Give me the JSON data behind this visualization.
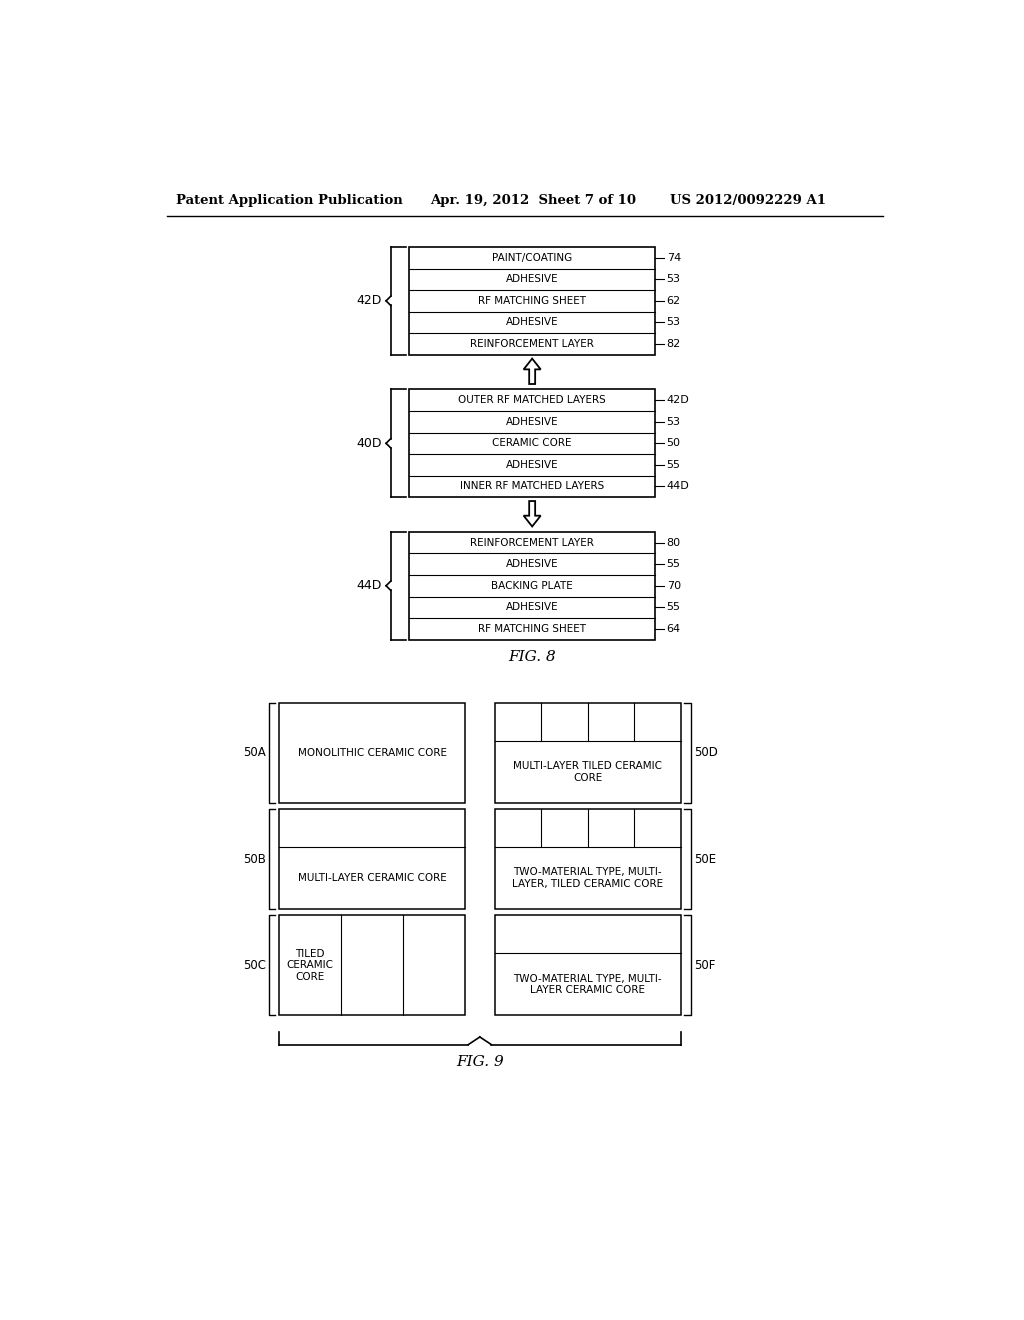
{
  "header_left": "Patent Application Publication",
  "header_mid": "Apr. 19, 2012  Sheet 7 of 10",
  "header_right": "US 2012/0092229 A1",
  "fig8": {
    "caption": "FIG. 8",
    "box1": {
      "label": "42D",
      "layers": [
        {
          "text": "PAINT/COATING",
          "ref": "74"
        },
        {
          "text": "ADHESIVE",
          "ref": "53"
        },
        {
          "text": "RF MATCHING SHEET",
          "ref": "62"
        },
        {
          "text": "ADHESIVE",
          "ref": "53"
        },
        {
          "text": "REINFORCEMENT LAYER",
          "ref": "82"
        }
      ]
    },
    "box2": {
      "label": "40D",
      "layers": [
        {
          "text": "OUTER RF MATCHED LAYERS",
          "ref": "42D"
        },
        {
          "text": "ADHESIVE",
          "ref": "53"
        },
        {
          "text": "CERAMIC CORE",
          "ref": "50"
        },
        {
          "text": "ADHESIVE",
          "ref": "55"
        },
        {
          "text": "INNER RF MATCHED LAYERS",
          "ref": "44D"
        }
      ]
    },
    "box3": {
      "label": "44D",
      "layers": [
        {
          "text": "REINFORCEMENT LAYER",
          "ref": "80"
        },
        {
          "text": "ADHESIVE",
          "ref": "55"
        },
        {
          "text": "BACKING PLATE",
          "ref": "70"
        },
        {
          "text": "ADHESIVE",
          "ref": "55"
        },
        {
          "text": "RF MATCHING SHEET",
          "ref": "64"
        }
      ]
    }
  },
  "fig9": {
    "caption": "FIG. 9",
    "cells": [
      {
        "row": 0,
        "col": 0,
        "label": "50A",
        "text": "MONOLITHIC CERAMIC CORE",
        "sublayers": 0,
        "vert_dividers": 0,
        "label_side": "left"
      },
      {
        "row": 0,
        "col": 1,
        "label": "50D",
        "text": "MULTI-LAYER TILED CERAMIC\nCORE",
        "sublayers": 1,
        "vert_dividers": 3,
        "label_side": "right"
      },
      {
        "row": 1,
        "col": 0,
        "label": "50B",
        "text": "MULTI-LAYER CERAMIC CORE",
        "sublayers": 1,
        "vert_dividers": 0,
        "label_side": "left"
      },
      {
        "row": 1,
        "col": 1,
        "label": "50E",
        "text": "TWO-MATERIAL TYPE, MULTI-\nLAYER, TILED CERAMIC CORE",
        "sublayers": 1,
        "vert_dividers": 3,
        "label_side": "right"
      },
      {
        "row": 2,
        "col": 0,
        "label": "50C",
        "text": "TILED\nCERAMIC\nCORE",
        "sublayers": 0,
        "vert_dividers": 2,
        "label_side": "left"
      },
      {
        "row": 2,
        "col": 1,
        "label": "50F",
        "text": "TWO-MATERIAL TYPE, MULTI-\nLAYER CERAMIC CORE",
        "sublayers": 1,
        "vert_dividers": 0,
        "label_side": "right"
      }
    ]
  }
}
